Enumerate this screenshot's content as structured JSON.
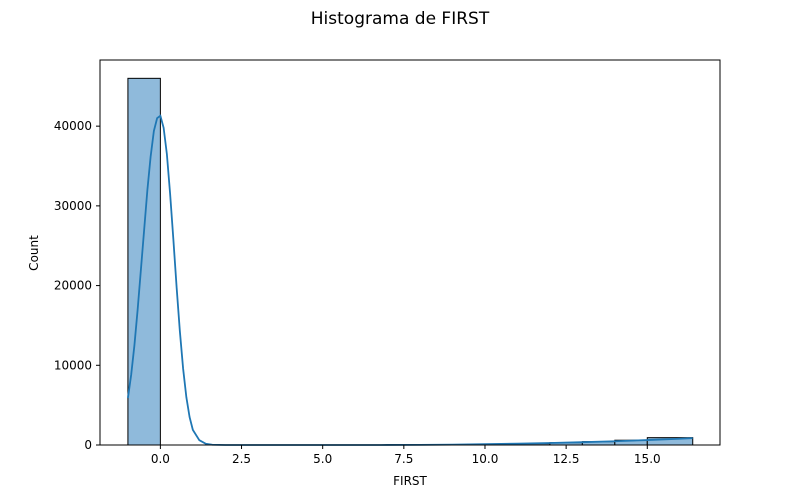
{
  "chart_data": {
    "type": "bar",
    "title": "Histograma de FIRST",
    "xlabel": "FIRST",
    "ylabel": "Count",
    "xlim": [
      -1.86,
      17.24
    ],
    "ylim": [
      0,
      48300
    ],
    "xticks": [
      0.0,
      2.5,
      5.0,
      7.5,
      10.0,
      12.5,
      15.0
    ],
    "xtick_labels": [
      "0.0",
      "2.5",
      "5.0",
      "7.5",
      "10.0",
      "12.5",
      "15.0"
    ],
    "yticks": [
      0,
      10000,
      20000,
      30000,
      40000
    ],
    "ytick_labels": [
      "0",
      "10000",
      "20000",
      "30000",
      "40000"
    ],
    "bins": [
      {
        "x0": -1.0,
        "x1": -0.0,
        "count": 46000
      },
      {
        "x0": -0.0,
        "x1": 1.0,
        "count": 0
      },
      {
        "x0": 1.0,
        "x1": 2.0,
        "count": 0
      },
      {
        "x0": 2.0,
        "x1": 3.0,
        "count": 0
      },
      {
        "x0": 3.0,
        "x1": 4.0,
        "count": 0
      },
      {
        "x0": 4.0,
        "x1": 5.0,
        "count": 0
      },
      {
        "x0": 5.0,
        "x1": 6.0,
        "count": 0
      },
      {
        "x0": 6.0,
        "x1": 7.0,
        "count": 0
      },
      {
        "x0": 7.0,
        "x1": 8.0,
        "count": 0
      },
      {
        "x0": 8.0,
        "x1": 9.0,
        "count": 10
      },
      {
        "x0": 9.0,
        "x1": 10.0,
        "count": 30
      },
      {
        "x0": 10.0,
        "x1": 11.0,
        "count": 80
      },
      {
        "x0": 11.0,
        "x1": 12.0,
        "count": 170
      },
      {
        "x0": 12.0,
        "x1": 13.0,
        "count": 290
      },
      {
        "x0": 13.0,
        "x1": 14.0,
        "count": 420
      },
      {
        "x0": 14.0,
        "x1": 15.0,
        "count": 600
      },
      {
        "x0": 15.0,
        "x1": 16.4,
        "count": 920
      }
    ],
    "kde": {
      "x": [
        -1.0,
        -0.9,
        -0.8,
        -0.7,
        -0.6,
        -0.5,
        -0.4,
        -0.3,
        -0.2,
        -0.1,
        0.0,
        0.1,
        0.2,
        0.3,
        0.4,
        0.5,
        0.6,
        0.7,
        0.8,
        0.9,
        1.0,
        1.2,
        1.4,
        1.6,
        2.0,
        3.0,
        5.0,
        7.0,
        8.0,
        9.0,
        10.0,
        11.0,
        12.0,
        13.0,
        14.0,
        15.0,
        16.0,
        16.4
      ],
      "y": [
        5900,
        8800,
        12500,
        17000,
        22000,
        27000,
        32000,
        36200,
        39400,
        41000,
        41300,
        39800,
        36500,
        31500,
        25800,
        19800,
        14300,
        9600,
        6000,
        3500,
        1900,
        600,
        150,
        30,
        0,
        0,
        0,
        5,
        20,
        50,
        100,
        170,
        250,
        350,
        470,
        620,
        780,
        860
      ]
    },
    "colors": {
      "bar_fill": "#8fbadb",
      "kde_line": "#1f77b4"
    },
    "grid": false,
    "legend": "none"
  }
}
